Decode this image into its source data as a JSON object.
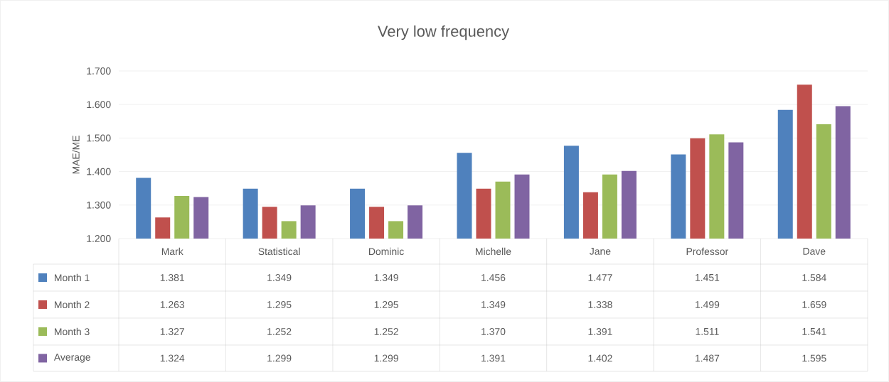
{
  "chart_data": {
    "type": "bar",
    "title": "Very low frequency",
    "ylabel": "MAE/ME",
    "categories": [
      "Mark",
      "Statistical",
      "Dominic",
      "Michelle",
      "Jane",
      "Professor",
      "Dave"
    ],
    "series": [
      {
        "name": "Month 1",
        "color": "#4f81bd",
        "values": [
          1.381,
          1.349,
          1.349,
          1.456,
          1.477,
          1.451,
          1.584
        ],
        "value_labels": [
          "1.381",
          "1.349",
          "1.349",
          "1.456",
          "1.477",
          "1.451",
          "1.584"
        ]
      },
      {
        "name": "Month 2",
        "color": "#c0504d",
        "values": [
          1.263,
          1.295,
          1.295,
          1.349,
          1.338,
          1.499,
          1.659
        ],
        "value_labels": [
          "1.263",
          "1.295",
          "1.295",
          "1.349",
          "1.338",
          "1.499",
          "1.659"
        ]
      },
      {
        "name": "Month 3",
        "color": "#9bbb59",
        "values": [
          1.327,
          1.252,
          1.252,
          1.37,
          1.391,
          1.511,
          1.541
        ],
        "value_labels": [
          "1.327",
          "1.252",
          "1.252",
          "1.370",
          "1.391",
          "1.511",
          "1.541"
        ]
      },
      {
        "name": "Average",
        "color": "#8064a2",
        "values": [
          1.324,
          1.299,
          1.299,
          1.391,
          1.402,
          1.487,
          1.595
        ],
        "value_labels": [
          "1.324",
          "1.299",
          "1.299",
          "1.391",
          "1.402",
          "1.487",
          "1.595"
        ]
      }
    ],
    "ylim": [
      1.2,
      1.7
    ],
    "yticks": [
      {
        "value": 1.2,
        "label": "1.200"
      },
      {
        "value": 1.3,
        "label": "1.300"
      },
      {
        "value": 1.4,
        "label": "1.400"
      },
      {
        "value": 1.5,
        "label": "1.500"
      },
      {
        "value": 1.6,
        "label": "1.600"
      },
      {
        "value": 1.7,
        "label": "1.700"
      }
    ],
    "grid": "y",
    "legend": "bottom"
  }
}
